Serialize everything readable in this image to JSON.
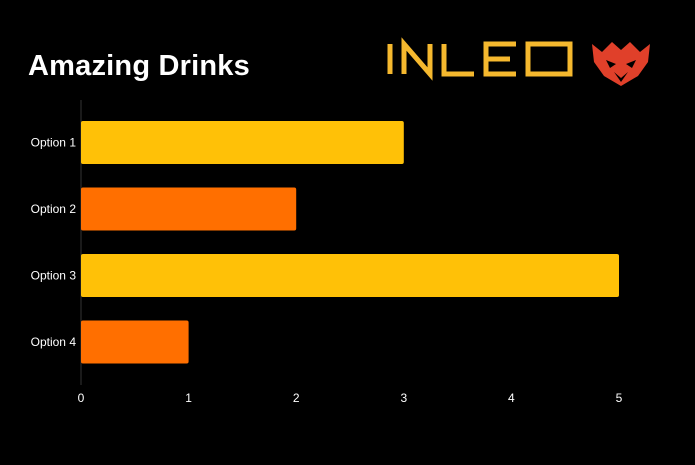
{
  "chart_data": {
    "type": "bar",
    "orientation": "horizontal",
    "title": "Amazing Drinks",
    "categories": [
      "Option 1",
      "Option 2",
      "Option 3",
      "Option 4"
    ],
    "values": [
      3,
      2,
      5,
      1
    ],
    "bar_colors": [
      "#FFC107",
      "#FF6F00",
      "#FFC107",
      "#FF6F00"
    ],
    "xlim": [
      0,
      5
    ],
    "x_ticks": [
      0,
      1,
      2,
      3,
      4,
      5
    ],
    "xlabel": "",
    "ylabel": "",
    "grid": false,
    "legend": "none"
  },
  "brand": {
    "logo_text": "INLEO",
    "logo_icon": "lion-head-icon",
    "text_color": "#F5B82E",
    "icon_color": "#E0402A"
  }
}
